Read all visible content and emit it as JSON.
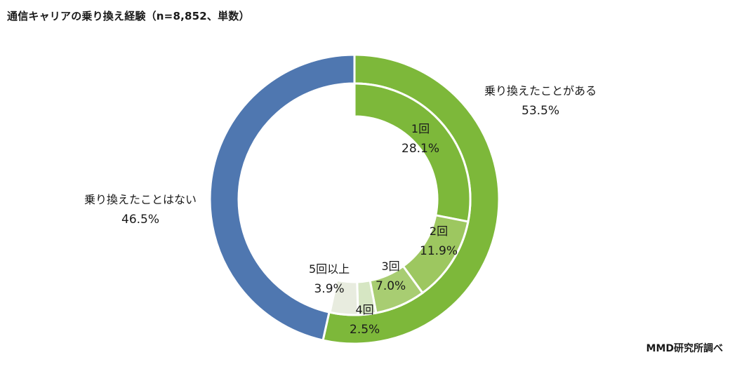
{
  "title": "通信キャリアの乗り換え経験（n=8,852、単数）",
  "credit": "MMD研究所調べ",
  "colors": {
    "outer_yes": "#7db83a",
    "outer_no": "#4f77b0",
    "inner_1": "#7db83a",
    "inner_2": "#9dc760",
    "inner_3": "#a8cd72",
    "inner_4": "#d6e6c3",
    "inner_5plus": "#e8ecdf"
  },
  "labels": {
    "yes": {
      "name": "乗り換えたことがある",
      "pct": "53.5%"
    },
    "no": {
      "name": "乗り換えたことはない",
      "pct": "46.5%"
    },
    "c1": {
      "name": "1回",
      "pct": "28.1%"
    },
    "c2": {
      "name": "2回",
      "pct": "11.9%"
    },
    "c3": {
      "name": "3回",
      "pct": "7.0%"
    },
    "c4": {
      "name": "4回",
      "pct": "2.5%"
    },
    "c5": {
      "name": "5回以上",
      "pct": "3.9%"
    }
  },
  "chart_data": {
    "type": "pie",
    "subtype": "nested-donut",
    "title": "通信キャリアの乗り換え経験（n=8,852、単数）",
    "source": "MMD研究所調べ",
    "series": [
      {
        "name": "outer",
        "categories": [
          "乗り換えたことがある",
          "乗り換えたことはない"
        ],
        "values": [
          53.5,
          46.5
        ]
      },
      {
        "name": "inner",
        "categories": [
          "1回",
          "2回",
          "3回",
          "4回",
          "5回以上"
        ],
        "values": [
          28.1,
          11.9,
          7.0,
          2.5,
          3.9
        ]
      }
    ],
    "unit": "%"
  }
}
